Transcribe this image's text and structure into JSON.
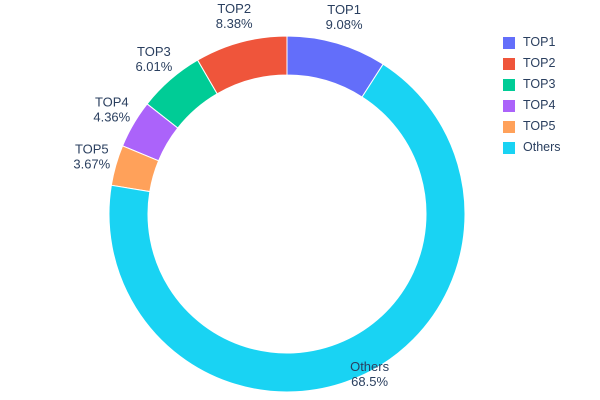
{
  "chart_data": {
    "type": "pie",
    "subtype": "donut",
    "labels": [
      "TOP1",
      "TOP2",
      "TOP3",
      "TOP4",
      "TOP5",
      "Others"
    ],
    "values": [
      9.08,
      8.38,
      6.01,
      4.36,
      3.67,
      68.5
    ],
    "percent_labels": [
      "9.08%",
      "8.38%",
      "6.01%",
      "4.36%",
      "3.67%",
      "68.5%"
    ],
    "colors": [
      "#636efa",
      "#ef553b",
      "#00cc96",
      "#ab63fa",
      "#ffa15a",
      "#19d3f3"
    ],
    "hole": 0.78,
    "slice_border_color": "#ffffff",
    "text_color": "#2a3f5f",
    "background": "#ffffff",
    "title": "",
    "legend_position": "right",
    "legend_entries": [
      "TOP1",
      "TOP2",
      "TOP3",
      "TOP4",
      "TOP5",
      "Others"
    ],
    "label_placement": "outside",
    "start_angle": "top",
    "first_slice_direction": "clockwise",
    "remaining_slices_direction": "counterclockwise"
  }
}
